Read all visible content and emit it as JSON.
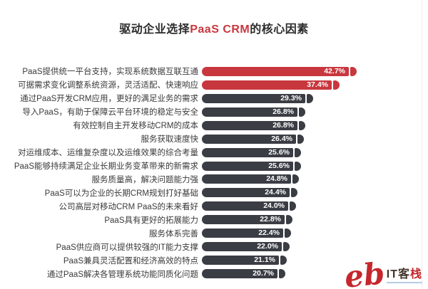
{
  "title": {
    "prefix": "驱动企业选择",
    "highlight": "PaaS CRM",
    "suffix": "的核心因素"
  },
  "colors": {
    "bar_red": "#c8373e",
    "bar_dark": "#3a3d44",
    "title_text": "#2b2b2b",
    "title_highlight": "#c8373e",
    "label_text": "#3a3a3a",
    "value_text": "#ffffff"
  },
  "watermark": {
    "script_text": "eb",
    "brand_prefix": "IT客",
    "brand_suffix": "栈"
  },
  "chart_data": {
    "type": "bar",
    "orientation": "horizontal",
    "title": "驱动企业选择PaaS CRM的核心因素",
    "unit": "%",
    "xlim": [
      0,
      45
    ],
    "grid": false,
    "legend": false,
    "value_labels_position": "inside-end",
    "categories": [
      "PaaS提供统一平台支持，实现系统数据互联互通",
      "可据需求变化调整系统资源，灵活适配、快速响应",
      "通过PaaS开发CRM应用，更好的满足业务的需求",
      "导入PaaS，有助于保障云平台环境的稳定与安全",
      "有效控制自主开发移动CRM的成本",
      "服务获取速度快",
      "对运维成本、运维复杂度以及运维效果的综合考量",
      "PaaS能够持续满足企业长期业务变革带来的新需求",
      "服务质量高，解决问题能力强",
      "PaaS可以为企业的长期CRM规划打好基础",
      "公司高层对移动CRM PaaS的未来看好",
      "PaaS具有更好的拓展能力",
      "服务体系完善",
      "PaaS供应商可以提供较强的IT能力支撑",
      "PaaS兼具灵活配置和经济高效的特点",
      "通过PaaS解决各管理系统功能同质化问题"
    ],
    "values": [
      42.7,
      37.4,
      29.3,
      26.8,
      26.8,
      26.4,
      25.6,
      25.6,
      24.8,
      24.4,
      24.0,
      22.8,
      22.4,
      22.0,
      21.1,
      20.7
    ],
    "value_labels": [
      "42.7%",
      "37.4%",
      "29.3%",
      "26.8%",
      "26.8%",
      "26.4%",
      "25.6%",
      "25.6%",
      "24.8%",
      "24.4%",
      "24.0%",
      "22.8%",
      "22.4%",
      "22.0%",
      "21.1%",
      "20.7%"
    ],
    "bar_colors": [
      "red",
      "red",
      "dark",
      "dark",
      "dark",
      "dark",
      "dark",
      "dark",
      "dark",
      "dark",
      "dark",
      "dark",
      "dark",
      "dark",
      "dark",
      "dark"
    ]
  }
}
